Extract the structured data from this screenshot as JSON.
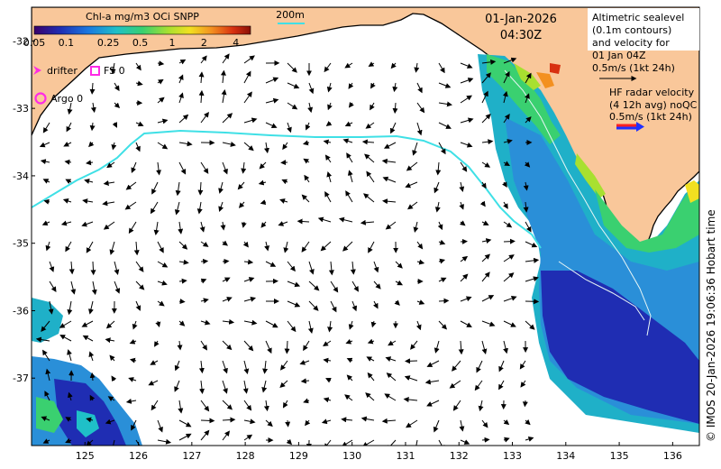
{
  "map": {
    "lon_range": [
      124.0,
      136.5
    ],
    "lat_range": [
      -38.0,
      -31.5
    ],
    "lon_ticks": [
      "125",
      "126",
      "127",
      "128",
      "129",
      "130",
      "131",
      "132",
      "133",
      "134",
      "135",
      "136"
    ],
    "lat_ticks": [
      "-32",
      "-33",
      "-34",
      "-35",
      "-36",
      "-37"
    ],
    "colors": {
      "land": "#f9c79a",
      "ocean": "#ffffff",
      "isobath": "#3fe0e6",
      "drifter": "#ff2ae6",
      "radar_red": "#ff2020",
      "radar_blue": "#2030ff"
    }
  },
  "colorbar": {
    "title": "Chl-a mg/m3 OCi SNPP",
    "labels": [
      "0.05",
      "0.1",
      "0.25",
      "0.5",
      "1",
      "2",
      "4"
    ],
    "gradient": [
      "#3a006a",
      "#1f2db3",
      "#1a78e0",
      "#1fc0c8",
      "#38d070",
      "#a8e030",
      "#f2e020",
      "#f39020",
      "#d83010",
      "#8a1008"
    ]
  },
  "scale_bar": {
    "label": "200m"
  },
  "legend": {
    "drifter": "drifter",
    "fs": "FS 0",
    "argo": "Argo 0"
  },
  "timestamp": {
    "date": "01-Jan-2026",
    "time": "04:30Z"
  },
  "altimetry_note": {
    "lines": [
      "Altimetric sealevel",
      "(0.1m contours)",
      "and velocity for",
      "01 Jan 04Z",
      "0.5m/s (1kt 24h)"
    ]
  },
  "radar_note": {
    "lines": [
      "HF radar velocity",
      "(4 12h avg) noQC",
      "0.5m/s (1kt 24h)"
    ]
  },
  "credit": "© IMOS 20-Jan-2026 19:06:36 Hobart time"
}
